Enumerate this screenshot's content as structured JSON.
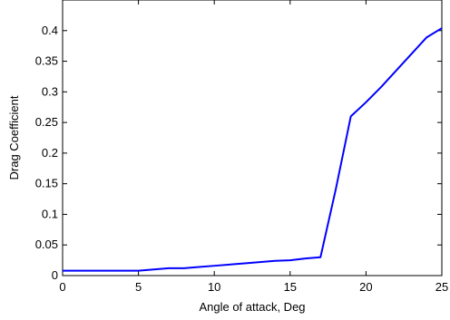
{
  "chart_data": {
    "type": "line",
    "xlabel": "Angle of attack, Deg",
    "ylabel": "Drag Coefficient",
    "xlim": [
      0,
      25
    ],
    "ylim": [
      0,
      0.45
    ],
    "xticks": [
      0,
      5,
      10,
      15,
      20,
      25
    ],
    "xtick_labels": [
      "0",
      "5",
      "10",
      "15",
      "20",
      "25"
    ],
    "yticks": [
      0,
      0.05,
      0.1,
      0.15,
      0.2,
      0.25,
      0.3,
      0.35,
      0.4
    ],
    "ytick_labels": [
      "0",
      "0.05",
      "0.1",
      "0.15",
      "0.2",
      "0.25",
      "0.3",
      "0.35",
      "0.4"
    ],
    "grid": false,
    "series": [
      {
        "color": "#0000ff",
        "x": [
          0,
          2,
          4,
          5,
          6,
          7,
          8,
          9,
          10,
          11,
          12,
          13,
          14,
          15,
          16,
          17,
          18,
          19,
          20,
          21,
          22,
          23,
          24,
          25
        ],
        "y": [
          0.008,
          0.008,
          0.008,
          0.008,
          0.01,
          0.012,
          0.012,
          0.014,
          0.016,
          0.018,
          0.02,
          0.022,
          0.024,
          0.025,
          0.028,
          0.03,
          0.14,
          0.26,
          0.283,
          0.308,
          0.335,
          0.362,
          0.389,
          0.404
        ]
      }
    ]
  }
}
